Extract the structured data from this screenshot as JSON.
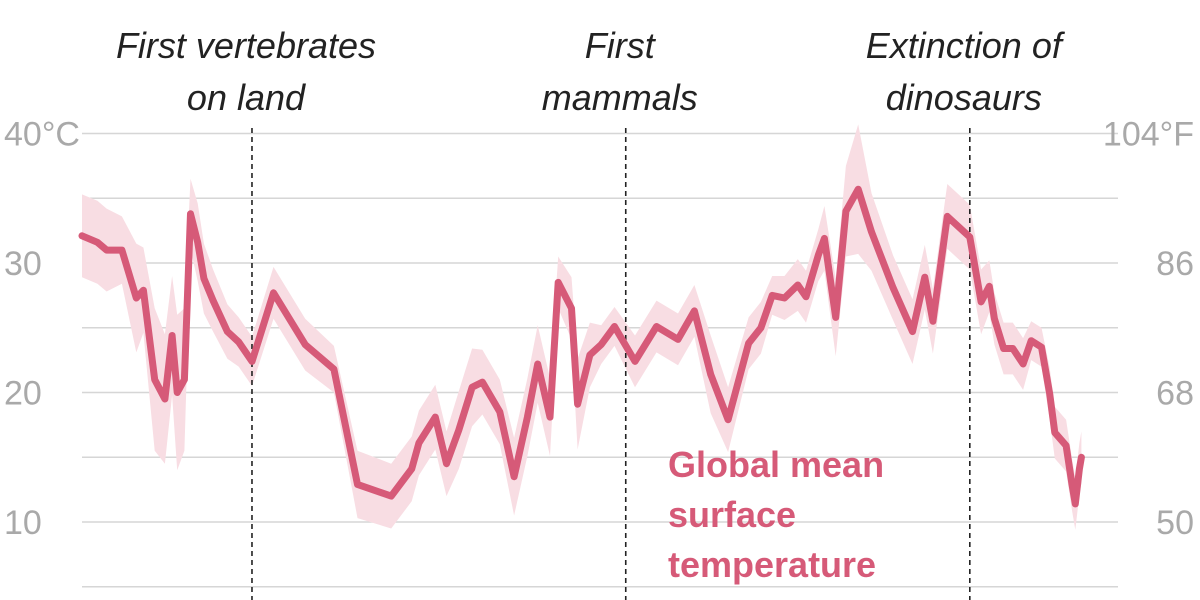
{
  "colors": {
    "line": "#d65a78",
    "band": "#f8dde3",
    "grid": "#d6d6d6",
    "tick": "#a9a9a9",
    "text": "#222222"
  },
  "chart_data": {
    "type": "line",
    "title": "",
    "xlabel": "",
    "ylabel": "",
    "ylim": [
      5,
      41
    ],
    "xlim": [
      0,
      100
    ],
    "grid": true,
    "yticks_left": [
      {
        "value": 40,
        "label": "40°C"
      },
      {
        "value": 30,
        "label": "30"
      },
      {
        "value": 20,
        "label": "20"
      },
      {
        "value": 10,
        "label": "10"
      }
    ],
    "yticks_right": [
      {
        "value": 40,
        "label": "104°F"
      },
      {
        "value": 30,
        "label": "86"
      },
      {
        "value": 20,
        "label": "68"
      },
      {
        "value": 10,
        "label": "50"
      }
    ],
    "gridlines": [
      40,
      35,
      30,
      25,
      20,
      15,
      10,
      5
    ],
    "events": [
      {
        "x": 16.6,
        "label_lines": [
          "First vertebrates",
          "on land"
        ]
      },
      {
        "x": 53.1,
        "label_lines": [
          "First",
          "mammals"
        ]
      },
      {
        "x": 86.7,
        "label_lines": [
          "Extinction of",
          "dinosaurs"
        ]
      }
    ],
    "series": [
      {
        "name": "Global mean surface temperature",
        "label_lines": [
          "Global mean",
          "surface",
          "temperature"
        ],
        "x": [
          0,
          1.5,
          2.4,
          3.9,
          5.3,
          6.0,
          7.1,
          8.1,
          8.8,
          9.3,
          10.0,
          10.6,
          11.3,
          11.9,
          12.8,
          14.2,
          15.3,
          16.6,
          18.7,
          21.8,
          24.6,
          26.9,
          30.2,
          32.2,
          32.9,
          34.5,
          35.6,
          36.8,
          38.1,
          39.1,
          40.8,
          42.2,
          43.5,
          44.5,
          45.7,
          46.5,
          47.8,
          48.4,
          49.6,
          50.7,
          52.0,
          54.0,
          56.1,
          58.2,
          59.8,
          61.4,
          63.1,
          65.1,
          66.3,
          67.4,
          68.6,
          69.9,
          70.7,
          71.9,
          72.5,
          73.6,
          74.6,
          75.8,
          77.1,
          79.2,
          81.1,
          82.3,
          83.1,
          84.5,
          86.7,
          87.8,
          88.6,
          89.1,
          90.0,
          90.9,
          91.9,
          92.7,
          93.7,
          94.5,
          95.0,
          96.1,
          96.7,
          97.0,
          97.4,
          97.6
        ],
        "y": [
          32.1,
          31.6,
          31.0,
          31.0,
          27.3,
          27.9,
          21.0,
          19.5,
          24.4,
          20.0,
          21.0,
          33.8,
          31.6,
          28.8,
          27.1,
          24.7,
          23.9,
          22.4,
          27.7,
          23.7,
          21.8,
          12.9,
          12.0,
          14.1,
          16.1,
          18.1,
          14.5,
          17.1,
          20.4,
          20.8,
          18.5,
          13.5,
          18.1,
          22.2,
          18.1,
          28.5,
          26.5,
          19.1,
          22.9,
          23.7,
          25.1,
          22.4,
          25.1,
          24.1,
          26.3,
          21.4,
          17.9,
          23.8,
          25.0,
          27.5,
          27.3,
          28.3,
          27.4,
          30.6,
          31.9,
          25.8,
          34.0,
          35.7,
          32.4,
          28.1,
          24.7,
          28.9,
          25.5,
          33.6,
          32.0,
          27.0,
          28.2,
          25.7,
          23.4,
          23.4,
          22.2,
          24.0,
          23.5,
          19.9,
          16.9,
          15.9,
          12.8,
          11.4,
          14.1,
          15.0
        ],
        "band_upper": [
          35.3,
          34.8,
          34.2,
          33.6,
          31.5,
          31.2,
          26.5,
          24.5,
          29.0,
          26.0,
          26.5,
          36.5,
          34.6,
          31.5,
          29.5,
          26.8,
          25.8,
          24.3,
          29.7,
          25.7,
          23.6,
          15.5,
          14.5,
          16.6,
          18.6,
          20.6,
          17.0,
          20.1,
          23.4,
          23.3,
          21.0,
          16.5,
          21.1,
          25.2,
          21.1,
          30.5,
          28.9,
          22.6,
          25.4,
          25.2,
          26.6,
          24.4,
          27.1,
          26.1,
          28.3,
          24.4,
          20.4,
          25.8,
          27.0,
          29.0,
          29.0,
          30.3,
          29.4,
          32.6,
          34.4,
          28.8,
          37.5,
          40.7,
          35.4,
          30.6,
          27.2,
          31.4,
          28.0,
          36.1,
          34.5,
          29.5,
          30.2,
          27.7,
          25.4,
          25.4,
          24.2,
          25.5,
          25.0,
          21.9,
          18.9,
          17.9,
          14.8,
          13.4,
          16.1,
          17.0
        ],
        "band_lower": [
          28.9,
          28.4,
          27.8,
          28.4,
          23.1,
          24.6,
          15.5,
          14.5,
          19.8,
          14.0,
          15.5,
          31.1,
          28.6,
          26.1,
          24.7,
          22.6,
          22.0,
          20.5,
          25.7,
          21.7,
          20.0,
          10.3,
          9.5,
          11.6,
          13.6,
          15.6,
          12.0,
          14.1,
          17.4,
          18.3,
          16.0,
          10.5,
          15.1,
          19.2,
          15.1,
          26.5,
          24.1,
          15.6,
          20.4,
          22.2,
          23.6,
          20.4,
          23.1,
          22.1,
          24.3,
          18.4,
          15.4,
          21.8,
          23.0,
          26.0,
          25.6,
          26.3,
          25.4,
          28.6,
          29.4,
          22.8,
          30.5,
          30.7,
          29.4,
          25.6,
          22.2,
          26.4,
          23.0,
          31.1,
          29.5,
          24.5,
          26.2,
          23.7,
          21.4,
          21.4,
          20.2,
          22.5,
          22.0,
          17.9,
          14.9,
          13.9,
          10.8,
          9.4,
          12.1,
          13.0
        ]
      }
    ]
  }
}
